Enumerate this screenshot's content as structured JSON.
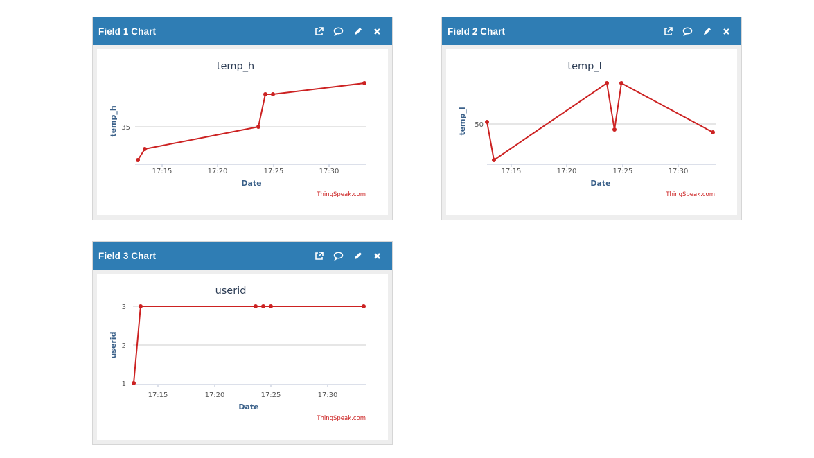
{
  "panels": [
    {
      "title": "Field 1 Chart",
      "chart": {
        "type": "line",
        "title": "temp_h",
        "xlabel": "Date",
        "ylabel": "temp_h",
        "credit": "ThingSpeak.com",
        "x_ticks": [
          "17:15",
          "17:20",
          "17:25",
          "17:30"
        ],
        "y_ticks": [
          "35"
        ]
      }
    },
    {
      "title": "Field 2 Chart",
      "chart": {
        "type": "line",
        "title": "temp_l",
        "xlabel": "Date",
        "ylabel": "temp_l",
        "credit": "ThingSpeak.com",
        "x_ticks": [
          "17:15",
          "17:20",
          "17:25",
          "17:30"
        ],
        "y_ticks": [
          "50"
        ]
      }
    },
    {
      "title": "Field 3 Chart",
      "chart": {
        "type": "line",
        "title": "userid",
        "xlabel": "Date",
        "ylabel": "userid",
        "credit": "ThingSpeak.com",
        "x_ticks": [
          "17:15",
          "17:20",
          "17:25",
          "17:30"
        ],
        "y_ticks": [
          "3",
          "2",
          "1"
        ]
      }
    }
  ],
  "chart_data": [
    {
      "type": "line",
      "title": "temp_h",
      "xlabel": "Date",
      "ylabel": "temp_h",
      "x_minutes": [
        17.3,
        17.9,
        27.9,
        28.5,
        29.1,
        37.0
      ],
      "x_tick_labels": {
        "17:15": 19,
        "17:20": 24,
        "17:25": 29,
        "17:30": 34
      },
      "values": [
        33.8,
        34.2,
        35.0,
        37.3,
        37.3,
        38.0
      ],
      "ylim": [
        33.6,
        38.5
      ],
      "y_ticks": [
        35
      ],
      "color": "#cc2222"
    },
    {
      "type": "line",
      "title": "temp_l",
      "xlabel": "Date",
      "ylabel": "temp_l",
      "x_minutes": [
        17.3,
        17.9,
        27.9,
        28.5,
        29.1,
        37.0
      ],
      "x_tick_labels": {
        "17:15": 19,
        "17:20": 24,
        "17:25": 29,
        "17:30": 34
      },
      "values": [
        50.2,
        47.5,
        53.0,
        49.6,
        53.0,
        49.4
      ],
      "ylim": [
        47.2,
        53.5
      ],
      "y_ticks": [
        50
      ],
      "color": "#cc2222"
    },
    {
      "type": "line",
      "title": "userid",
      "xlabel": "Date",
      "ylabel": "userid",
      "x_minutes": [
        17.3,
        17.9,
        27.9,
        28.5,
        29.1,
        37.0
      ],
      "x_tick_labels": {
        "17:15": 19,
        "17:20": 24,
        "17:25": 29,
        "17:30": 34
      },
      "values": [
        1,
        3,
        3,
        3,
        3,
        3
      ],
      "ylim": [
        0.95,
        3.1
      ],
      "y_ticks": [
        1,
        2,
        3
      ],
      "color": "#cc2222"
    }
  ],
  "icons": [
    "external-link-icon",
    "comment-icon",
    "pencil-icon",
    "close-icon"
  ],
  "colors": {
    "header": "#2f7db4",
    "line": "#cc2222",
    "axis_text": "#3a6089",
    "credit": "#cc2222"
  }
}
